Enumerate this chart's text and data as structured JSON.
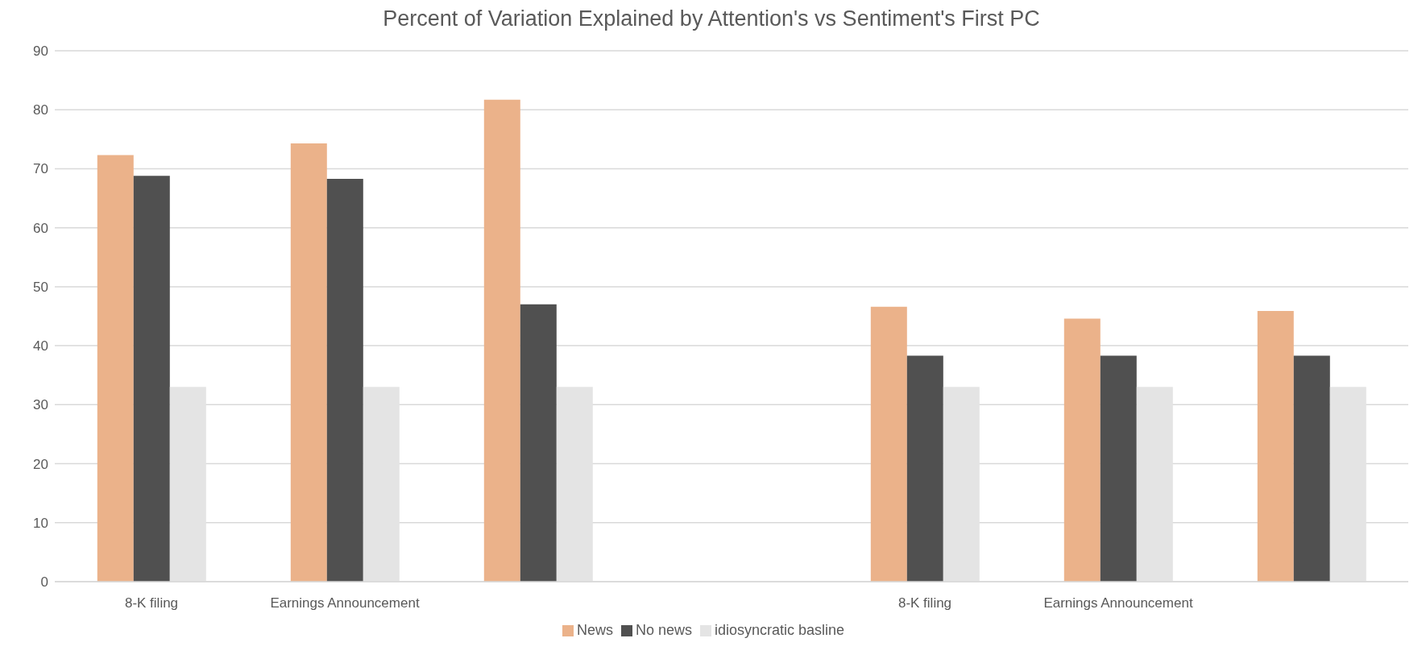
{
  "chart_data": {
    "type": "bar",
    "title": "Percent of Variation Explained by Attention's vs Sentiment's First PC",
    "categories": [
      "8-K filing",
      "Earnings Announcement",
      null,
      null,
      "8-K filing",
      "Earnings Announcement",
      null
    ],
    "series": [
      {
        "name": "News",
        "color": "#ebb28a",
        "values": [
          72.3,
          74.3,
          81.7,
          null,
          46.6,
          44.6,
          45.9
        ]
      },
      {
        "name": "No news",
        "color": "#505050",
        "values": [
          68.8,
          68.3,
          47,
          null,
          38.3,
          38.3,
          38.3
        ]
      },
      {
        "name": "idiosyncratic basline",
        "color": "#e4e4e4",
        "values": [
          33,
          33,
          33,
          null,
          33,
          33,
          33
        ]
      }
    ],
    "ylim": [
      0,
      90
    ],
    "yticks": [
      0,
      10,
      20,
      30,
      40,
      50,
      60,
      70,
      80,
      90
    ],
    "grid": "y",
    "legend": "bottom"
  }
}
